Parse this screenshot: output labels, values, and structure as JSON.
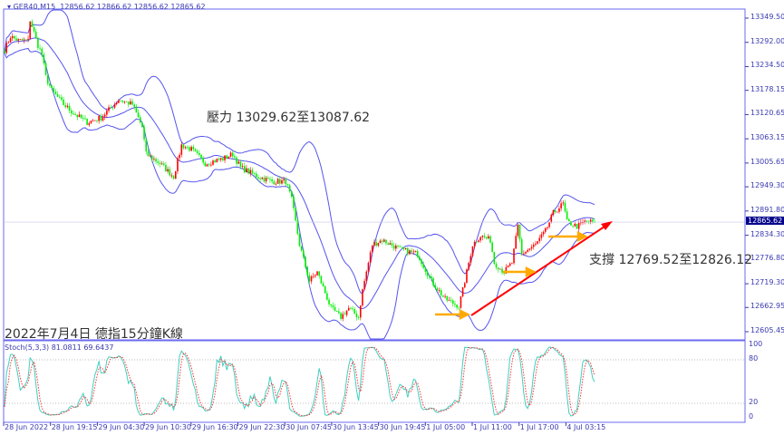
{
  "header": {
    "symbol": "GER40,M15",
    "ohlc": "12856.62 12866.62 12856.62 12865.62"
  },
  "annotations": {
    "resistance": "壓力 13029.62至13087.62",
    "support": "支撐 12769.52至12826.12",
    "caption": "2022年7月4日 德指15分鐘K線"
  },
  "colors": {
    "up": "#ff0000",
    "down": "#00ee00",
    "bands": "#5555ee",
    "stoch_main": "#40d0c0",
    "stoch_signal": "#ff3333",
    "trendline": "#ff0000",
    "support_arrows": "#ffaa00",
    "axis": "#3a3ab0"
  },
  "stoch_panel": {
    "title": "Stoch(5,3,3) 81.0811 69.6437",
    "ticks": [
      "100",
      "80",
      "20",
      "0"
    ]
  },
  "chart_data": {
    "type": "candlestick",
    "timeframe": "M15",
    "indicators": [
      "Bollinger Bands (20,2)",
      "Stochastic (5,3,3)"
    ],
    "ylim": [
      12605.45,
      13349.5
    ],
    "last_price": "12865.62",
    "y_ticks": [
      "13349.50",
      "13292.00",
      "13234.50",
      "13178.15",
      "13120.65",
      "13063.15",
      "13005.65",
      "12949.30",
      "12891.80",
      "12834.30",
      "12776.80",
      "12719.30",
      "12662.95",
      "12605.45"
    ],
    "x_ticks": [
      "28 Jun 2022",
      "28 Jun 19:15",
      "29 Jun 04:30",
      "29 Jun 10:30",
      "29 Jun 16:30",
      "29 Jun 22:30",
      "30 Jun 07:45",
      "30 Jun 13:45",
      "30 Jun 19:45",
      "1 Jul 05:00",
      "1 Jul 11:00",
      "1 Jul 17:00",
      "4 Jul 03:15"
    ],
    "close_path": [
      [
        0,
        13274
      ],
      [
        3,
        13306
      ],
      [
        7,
        13296
      ],
      [
        12,
        13296
      ],
      [
        13,
        13345
      ],
      [
        17,
        13285
      ],
      [
        19,
        13264
      ],
      [
        21,
        13210
      ],
      [
        24,
        13178
      ],
      [
        30,
        13145
      ],
      [
        35,
        13124
      ],
      [
        42,
        13102
      ],
      [
        49,
        13113
      ],
      [
        58,
        13156
      ],
      [
        65,
        13145
      ],
      [
        70,
        13091
      ],
      [
        72,
        13027
      ],
      [
        79,
        13005
      ],
      [
        86,
        12973
      ],
      [
        90,
        13048
      ],
      [
        95,
        13038
      ],
      [
        102,
        13005
      ],
      [
        111,
        13016
      ],
      [
        116,
        13027
      ],
      [
        120,
        12995
      ],
      [
        129,
        12973
      ],
      [
        136,
        12962
      ],
      [
        143,
        12962
      ],
      [
        146,
        12919
      ],
      [
        150,
        12812
      ],
      [
        155,
        12726
      ],
      [
        159,
        12747
      ],
      [
        166,
        12661
      ],
      [
        171,
        12640
      ],
      [
        175,
        12661
      ],
      [
        180,
        12640
      ],
      [
        182,
        12704
      ],
      [
        187,
        12812
      ],
      [
        192,
        12823
      ],
      [
        201,
        12801
      ],
      [
        210,
        12790
      ],
      [
        217,
        12726
      ],
      [
        224,
        12683
      ],
      [
        231,
        12666
      ],
      [
        233,
        12704
      ],
      [
        238,
        12812
      ],
      [
        242,
        12833
      ],
      [
        247,
        12823
      ],
      [
        249,
        12769
      ],
      [
        254,
        12747
      ],
      [
        258,
        12769
      ],
      [
        261,
        12855
      ],
      [
        263,
        12790
      ],
      [
        270,
        12812
      ],
      [
        275,
        12844
      ],
      [
        279,
        12887
      ],
      [
        284,
        12909
      ],
      [
        286,
        12866
      ],
      [
        291,
        12855
      ],
      [
        295,
        12866
      ],
      [
        300,
        12865.62
      ]
    ]
  }
}
